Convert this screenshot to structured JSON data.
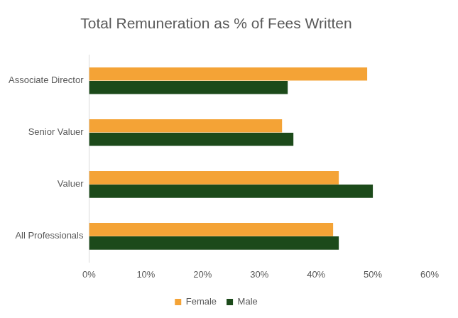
{
  "chart_data": {
    "type": "bar",
    "orientation": "horizontal",
    "title": "Total Remuneration as % of Fees Written",
    "categories": [
      "Associate Director",
      "Senior Valuer",
      "Valuer",
      "All Professionals"
    ],
    "series": [
      {
        "name": "Female",
        "color": "#f4a336",
        "values": [
          49,
          34,
          44,
          43
        ]
      },
      {
        "name": "Male",
        "color": "#1c4a1a",
        "values": [
          35,
          36,
          50,
          44
        ]
      }
    ],
    "xlim": [
      0,
      60
    ],
    "xticks": [
      {
        "value": 0,
        "label": "0%"
      },
      {
        "value": 10,
        "label": "10%"
      },
      {
        "value": 20,
        "label": "20%"
      },
      {
        "value": 30,
        "label": "30%"
      },
      {
        "value": 40,
        "label": "40%"
      },
      {
        "value": 50,
        "label": "50%"
      },
      {
        "value": 60,
        "label": "60%"
      }
    ],
    "grid": false,
    "legend": "bottom"
  }
}
